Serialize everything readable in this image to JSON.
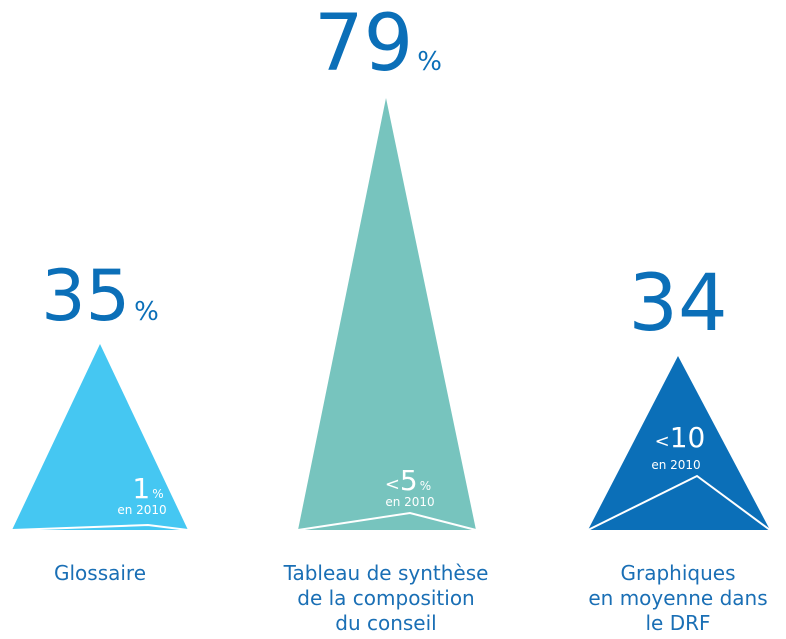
{
  "chart_data": {
    "type": "bar",
    "title": "",
    "colors": {
      "text": "#0b6fb8",
      "caption": "#1a6fb5",
      "white": "#ffffff"
    },
    "items": [
      {
        "value": "35",
        "unit": "%",
        "prev_prefix": "",
        "prev_value": "1",
        "prev_unit": "%",
        "prev_label": "en 2010",
        "caption": [
          "Glossaire"
        ],
        "color": "#45c7f2",
        "percent_now": 35,
        "percent_2010": 1
      },
      {
        "value": "79",
        "unit": "%",
        "prev_prefix": "<",
        "prev_value": "5",
        "prev_unit": "%",
        "prev_label": "en 2010",
        "caption": [
          "Tableau de synthèse",
          "de la composition",
          "du conseil"
        ],
        "color": "#77c4be",
        "percent_now": 79,
        "percent_2010": 5
      },
      {
        "value": "34",
        "unit": "",
        "prev_prefix": "<",
        "prev_value": "10",
        "prev_unit": "",
        "prev_label": "en 2010",
        "caption": [
          "Graphiques",
          "en moyenne dans",
          "le DRF"
        ],
        "color": "#0b6fb8",
        "percent_now": 34,
        "percent_2010": 10
      }
    ]
  }
}
